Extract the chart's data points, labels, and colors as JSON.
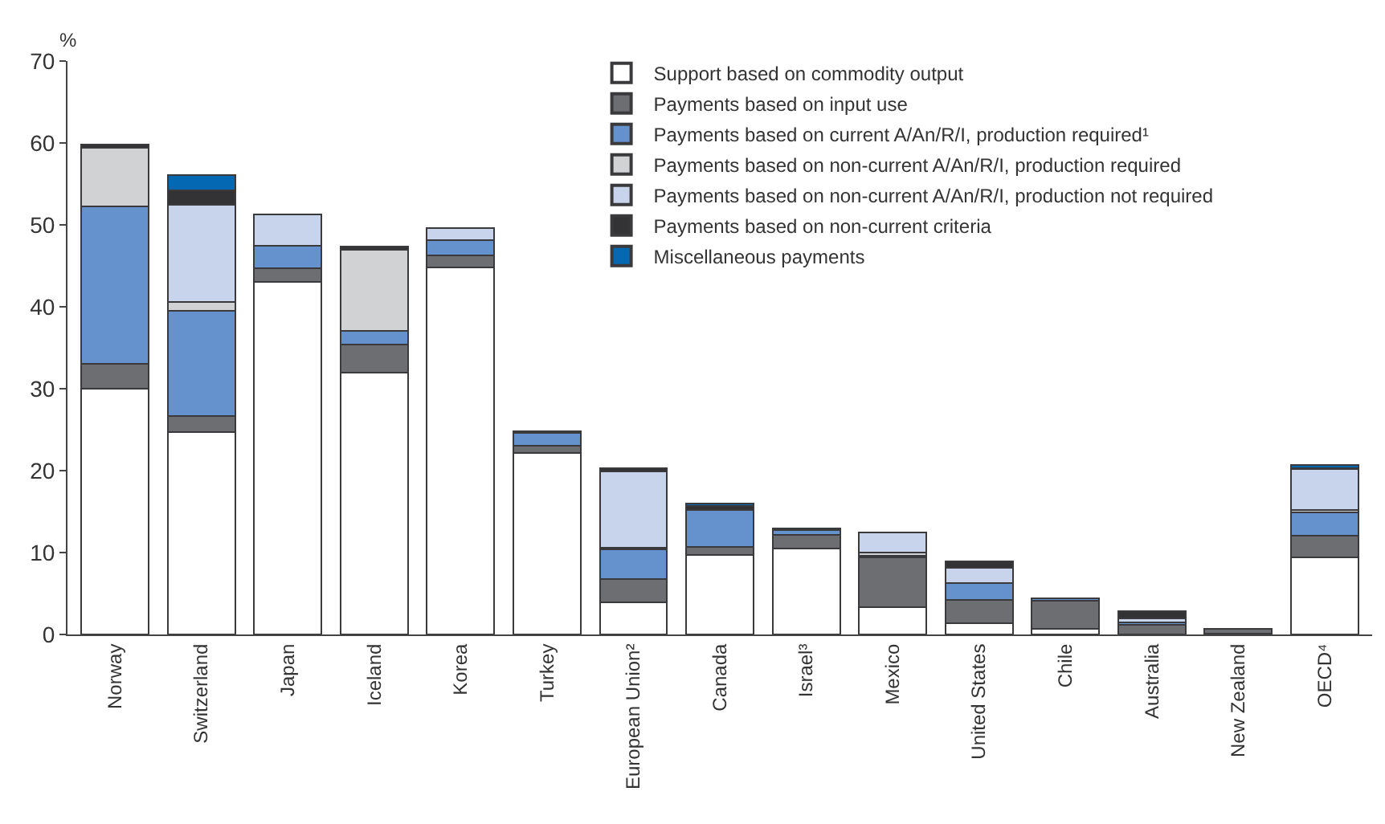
{
  "chart_data": {
    "type": "bar",
    "stacked": true,
    "ylabel": "%",
    "categories": [
      "Norway",
      "Switzerland",
      "Japan",
      "Iceland",
      "Korea",
      "Turkey",
      "European Union²",
      "Canada",
      "Israel³",
      "Mexico",
      "United States",
      "Chile",
      "Australia",
      "New Zealand",
      "OECD⁴"
    ],
    "series": [
      {
        "name": "Support based on commodity output",
        "color": "#ffffff",
        "values": [
          30,
          24.7,
          43,
          32,
          44.8,
          22.2,
          3.9,
          9.7,
          10.5,
          3.3,
          1.4,
          0.7,
          null,
          0.1,
          9.4
        ]
      },
      {
        "name": "Payments based on input use",
        "color": "#6d6e71",
        "values": [
          3,
          2,
          1.7,
          3.4,
          1.5,
          0.8,
          2.9,
          1,
          1.7,
          6.1,
          2.8,
          3.4,
          1.2,
          0.6,
          2.7
        ]
      },
      {
        "name": "Payments based on current A/An/R/I, production required¹",
        "color": "#6592cc",
        "values": [
          19.3,
          12.8,
          2.8,
          1.7,
          1.8,
          1.6,
          3.6,
          4.5,
          0.5,
          0.2,
          2.1,
          0.3,
          0.3,
          null,
          2.8
        ]
      },
      {
        "name": "Payments based on non-current A/An/R/I, production required",
        "color": "#d1d2d4",
        "values": [
          7.1,
          1.1,
          0,
          9.9,
          0,
          0,
          0.2,
          0,
          0,
          0.4,
          0,
          0,
          0,
          0,
          0.3
        ]
      },
      {
        "name": "Payments based on non-current A/An/R/I, production not required",
        "color": "#c8d4ec",
        "values": [
          0,
          11.9,
          3.8,
          0,
          1.5,
          0.2,
          9.3,
          0,
          0.2,
          2.5,
          1.8,
          0,
          0.5,
          0,
          5
        ]
      },
      {
        "name": "Payments based on non-current criteria",
        "color": "#333335",
        "values": [
          0.4,
          1.7,
          0,
          0.4,
          0,
          0,
          0.4,
          0.5,
          0,
          0,
          0.8,
          0,
          0.8,
          0,
          0.1
        ]
      },
      {
        "name": "Miscellaneous payments",
        "color": "#0568b3",
        "values": [
          0,
          1.9,
          0,
          0,
          0,
          0,
          0,
          0.3,
          0,
          0,
          0,
          0,
          0,
          0,
          0.4
        ]
      }
    ],
    "ylim": [
      0,
      70
    ],
    "yticks": [
      0,
      10,
      20,
      30,
      40,
      50,
      60,
      70
    ],
    "grid": false,
    "legend": "top"
  }
}
